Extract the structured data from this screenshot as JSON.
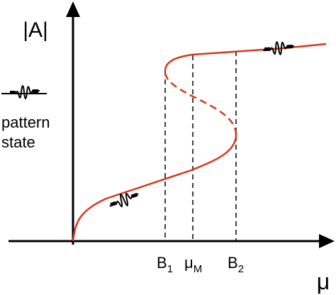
{
  "axes": {
    "y_label": "|A|",
    "x_label": "μ"
  },
  "legend": {
    "lines": [
      "pattern",
      "state"
    ]
  },
  "markers": [
    {
      "base": "B",
      "sub": "1"
    },
    {
      "base": "μ",
      "sub": "M"
    },
    {
      "base": "B",
      "sub": "2"
    }
  ]
}
